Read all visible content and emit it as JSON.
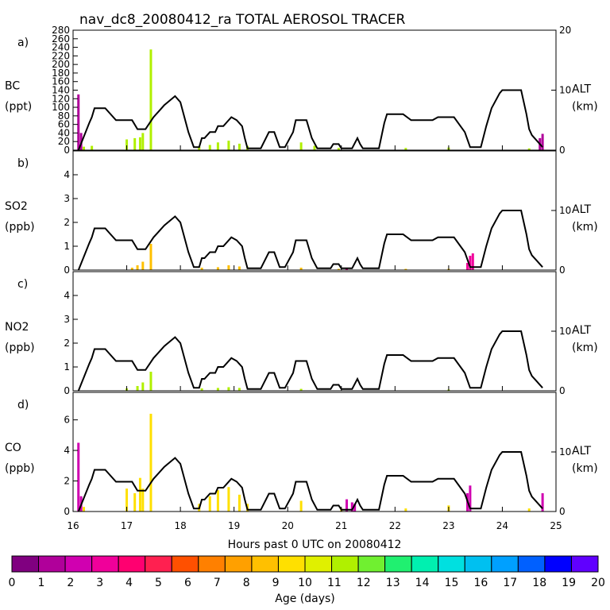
{
  "title": "nav_dc8_20080412_ra TOTAL AEROSOL TRACER",
  "xlabel": "Hours past 0 UTC on 20080412",
  "alt_axis": {
    "label": "ALT",
    "unit": "(km)",
    "ticks": [
      "0",
      "10",
      "20"
    ]
  },
  "colorbar": {
    "label": "Age (days)",
    "ticks": [
      "0",
      "1",
      "2",
      "3",
      "4",
      "5",
      "6",
      "7",
      "8",
      "9",
      "10",
      "11",
      "12",
      "13",
      "14",
      "15",
      "16",
      "17",
      "18",
      "19",
      "20"
    ],
    "colors": [
      "#800080",
      "#b0009a",
      "#d000b0",
      "#f0009a",
      "#ff0070",
      "#ff2050",
      "#ff5000",
      "#ff8000",
      "#ffa000",
      "#ffc000",
      "#ffe000",
      "#e0f000",
      "#b0f000",
      "#70f030",
      "#20f070",
      "#00f0b0",
      "#00e0e0",
      "#00c0f0",
      "#00a0ff",
      "#0060ff",
      "#0000ff",
      "#6000ff"
    ]
  },
  "chart_data": [
    {
      "panel": "a)",
      "species": "BC",
      "unit": "(ppt)",
      "type": "area",
      "ylim": [
        0,
        280
      ],
      "yticks": [
        "0",
        "20",
        "40",
        "60",
        "80",
        "100",
        "120",
        "140",
        "160",
        "180",
        "200",
        "220",
        "240",
        "260",
        "280"
      ],
      "xlim": [
        16,
        25
      ],
      "xticks": [
        "16",
        "17",
        "18",
        "19",
        "20",
        "21",
        "22",
        "23",
        "24",
        "25"
      ],
      "altitude_km": [
        [
          16.1,
          0
        ],
        [
          16.3,
          4.5
        ],
        [
          16.35,
          5.5
        ],
        [
          16.4,
          7
        ],
        [
          16.6,
          7
        ],
        [
          16.8,
          5
        ],
        [
          17.1,
          5
        ],
        [
          17.2,
          3.5
        ],
        [
          17.35,
          3.5
        ],
        [
          17.5,
          5.5
        ],
        [
          17.6,
          6.5
        ],
        [
          17.7,
          7.5
        ],
        [
          17.9,
          9
        ],
        [
          18.0,
          8
        ],
        [
          18.15,
          3
        ],
        [
          18.25,
          0.5
        ],
        [
          18.35,
          0.5
        ],
        [
          18.4,
          2
        ],
        [
          18.45,
          2
        ],
        [
          18.55,
          3
        ],
        [
          18.65,
          3
        ],
        [
          18.7,
          4
        ],
        [
          18.8,
          4
        ],
        [
          18.95,
          5.5
        ],
        [
          19.05,
          5
        ],
        [
          19.15,
          4
        ],
        [
          19.2,
          2
        ],
        [
          19.25,
          0.3
        ],
        [
          19.35,
          0.3
        ],
        [
          19.5,
          0.3
        ],
        [
          19.65,
          3
        ],
        [
          19.75,
          3
        ],
        [
          19.85,
          0.5
        ],
        [
          19.95,
          0.5
        ],
        [
          20.1,
          3
        ],
        [
          20.15,
          5
        ],
        [
          20.35,
          5
        ],
        [
          20.45,
          2
        ],
        [
          20.55,
          0.3
        ],
        [
          20.8,
          0.3
        ],
        [
          20.85,
          1
        ],
        [
          20.95,
          1
        ],
        [
          21.0,
          0.3
        ],
        [
          21.2,
          0.3
        ],
        [
          21.3,
          2
        ],
        [
          21.35,
          1
        ],
        [
          21.4,
          0.3
        ],
        [
          21.7,
          0.3
        ],
        [
          21.8,
          4.5
        ],
        [
          21.85,
          6
        ],
        [
          22.15,
          6
        ],
        [
          22.3,
          5
        ],
        [
          22.7,
          5
        ],
        [
          22.8,
          5.5
        ],
        [
          23.1,
          5.5
        ],
        [
          23.3,
          3
        ],
        [
          23.4,
          0.5
        ],
        [
          23.6,
          0.5
        ],
        [
          23.7,
          4
        ],
        [
          23.8,
          7
        ],
        [
          23.95,
          9.5
        ],
        [
          24.0,
          10
        ],
        [
          24.35,
          10
        ],
        [
          24.45,
          6
        ],
        [
          24.5,
          3.5
        ],
        [
          24.55,
          2.5
        ],
        [
          24.65,
          1.5
        ],
        [
          24.75,
          0.5
        ]
      ],
      "series": [
        {
          "name": "age 9-14 days",
          "color": "#b0f000",
          "values": [
            [
              16.2,
              8
            ],
            [
              16.35,
              10
            ],
            [
              17.0,
              25
            ],
            [
              17.15,
              28
            ],
            [
              17.25,
              30
            ],
            [
              17.3,
              40
            ],
            [
              17.45,
              235
            ],
            [
              18.35,
              8
            ],
            [
              18.55,
              12
            ],
            [
              18.7,
              18
            ],
            [
              18.9,
              22
            ],
            [
              19.1,
              15
            ],
            [
              19.25,
              10
            ],
            [
              20.25,
              18
            ],
            [
              20.5,
              10
            ],
            [
              20.95,
              5
            ],
            [
              22.2,
              5
            ],
            [
              23.0,
              6
            ],
            [
              24.5,
              4
            ]
          ]
        },
        {
          "name": "age 0-3 days",
          "color": "#b0009a",
          "values": [
            [
              16.1,
              130
            ],
            [
              16.15,
              40
            ],
            [
              24.7,
              28
            ],
            [
              24.75,
              38
            ]
          ]
        }
      ]
    },
    {
      "panel": "b)",
      "species": "SO2",
      "unit": "(ppb)",
      "type": "area",
      "ylim": [
        0,
        5
      ],
      "yticks": [
        "0",
        "1",
        "2",
        "3",
        "4"
      ],
      "xlim": [
        16,
        25
      ],
      "series": [
        {
          "name": "age 9-14 days",
          "color": "#ffc000",
          "values": [
            [
              17.1,
              0.1
            ],
            [
              17.2,
              0.2
            ],
            [
              17.3,
              0.35
            ],
            [
              17.45,
              1.1
            ],
            [
              18.4,
              0.1
            ],
            [
              18.7,
              0.12
            ],
            [
              18.9,
              0.2
            ],
            [
              19.1,
              0.15
            ],
            [
              20.25,
              0.1
            ],
            [
              20.95,
              0.05
            ],
            [
              22.2,
              0.05
            ],
            [
              23.0,
              0.05
            ]
          ]
        },
        {
          "name": "age 2-3 days",
          "color": "#f0009a",
          "values": [
            [
              21.1,
              0.05
            ],
            [
              23.35,
              0.3
            ],
            [
              23.4,
              0.6
            ],
            [
              23.45,
              0.7
            ]
          ]
        }
      ]
    },
    {
      "panel": "c)",
      "species": "NO2",
      "unit": "(ppb)",
      "type": "area",
      "ylim": [
        0,
        5
      ],
      "yticks": [
        "0",
        "1",
        "2",
        "3",
        "4"
      ],
      "xlim": [
        16,
        25
      ],
      "series": [
        {
          "name": "age 9-14 days",
          "color": "#b0f000",
          "values": [
            [
              17.0,
              0.1
            ],
            [
              17.2,
              0.2
            ],
            [
              17.3,
              0.35
            ],
            [
              17.45,
              0.8
            ],
            [
              18.4,
              0.1
            ],
            [
              18.7,
              0.12
            ],
            [
              18.9,
              0.15
            ],
            [
              19.1,
              0.12
            ],
            [
              20.25,
              0.08
            ],
            [
              23.0,
              0.05
            ]
          ]
        }
      ]
    },
    {
      "panel": "d)",
      "species": "CO",
      "unit": "(ppb)",
      "type": "area",
      "ylim": [
        0,
        7.8
      ],
      "yticks": [
        "0",
        "2",
        "4",
        "6"
      ],
      "xlim": [
        16,
        25
      ],
      "series": [
        {
          "name": "age 9-14 days",
          "color": "#ffe000",
          "values": [
            [
              16.2,
              0.3
            ],
            [
              17.0,
              1.5
            ],
            [
              17.15,
              1.2
            ],
            [
              17.25,
              2.2
            ],
            [
              17.3,
              1.5
            ],
            [
              17.45,
              6.4
            ],
            [
              18.35,
              0.5
            ],
            [
              18.55,
              1.0
            ],
            [
              18.7,
              1.4
            ],
            [
              18.9,
              1.6
            ],
            [
              19.1,
              1.1
            ],
            [
              19.25,
              0.5
            ],
            [
              20.25,
              0.7
            ],
            [
              21.0,
              0.2
            ],
            [
              22.2,
              0.2
            ],
            [
              23.0,
              0.4
            ],
            [
              24.5,
              0.2
            ]
          ]
        },
        {
          "name": "age 0-3 days",
          "color": "#d000b0",
          "values": [
            [
              16.1,
              4.5
            ],
            [
              16.15,
              1.0
            ],
            [
              21.1,
              0.8
            ],
            [
              21.2,
              0.6
            ],
            [
              21.25,
              0.5
            ],
            [
              23.35,
              1.2
            ],
            [
              23.4,
              1.7
            ],
            [
              24.75,
              1.2
            ]
          ]
        }
      ]
    }
  ]
}
